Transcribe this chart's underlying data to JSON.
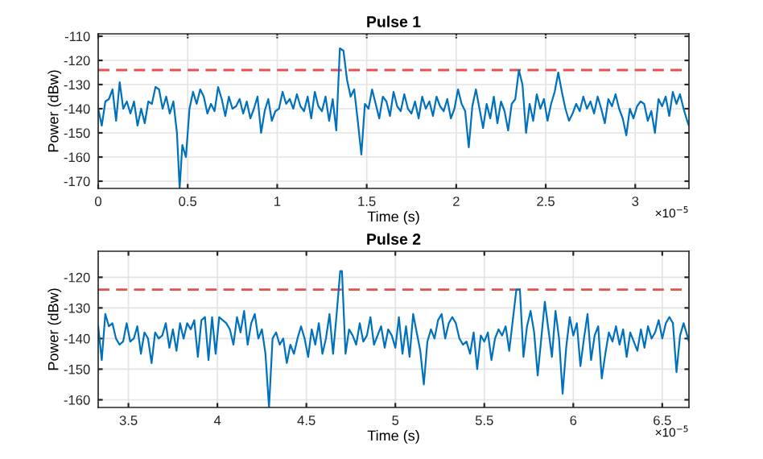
{
  "chart_data": [
    {
      "type": "line",
      "title": "Pulse 1",
      "xlabel": "Time (s)",
      "ylabel": "Power (dBw)",
      "annotations": [
        "×10$^{−5}$"
      ],
      "xlim": [
        0,
        3.3
      ],
      "xticks": [
        0,
        0.5,
        1,
        1.5,
        2,
        2.5,
        3
      ],
      "ylim": [
        -173,
        -109
      ],
      "yticks": [
        -170,
        -160,
        -150,
        -140,
        -130,
        -120,
        -110
      ],
      "grid": true,
      "line_style": "solid",
      "marker": "none",
      "ref_lines": [
        {
          "axis": "y",
          "value": -124,
          "label": null,
          "color": "#e8504f",
          "line_style": "dashed"
        }
      ],
      "series": [
        {
          "color": "#0072bd",
          "x": [
            0,
            0.02,
            0.04,
            0.06,
            0.08,
            0.1,
            0.12,
            0.14,
            0.16,
            0.18,
            0.2,
            0.22,
            0.24,
            0.26,
            0.28,
            0.3,
            0.32,
            0.34,
            0.36,
            0.38,
            0.4,
            0.42,
            0.44,
            0.455,
            0.47,
            0.49,
            0.51,
            0.53,
            0.55,
            0.57,
            0.59,
            0.61,
            0.63,
            0.65,
            0.67,
            0.69,
            0.71,
            0.73,
            0.75,
            0.77,
            0.79,
            0.81,
            0.83,
            0.85,
            0.87,
            0.89,
            0.91,
            0.93,
            0.95,
            0.97,
            0.99,
            1.01,
            1.03,
            1.05,
            1.07,
            1.09,
            1.11,
            1.13,
            1.15,
            1.17,
            1.19,
            1.21,
            1.23,
            1.25,
            1.27,
            1.29,
            1.31,
            1.33,
            1.35,
            1.37,
            1.39,
            1.41,
            1.43,
            1.45,
            1.47,
            1.49,
            1.51,
            1.53,
            1.55,
            1.57,
            1.59,
            1.61,
            1.63,
            1.65,
            1.67,
            1.69,
            1.71,
            1.73,
            1.75,
            1.77,
            1.79,
            1.81,
            1.83,
            1.85,
            1.87,
            1.89,
            1.91,
            1.93,
            1.95,
            1.97,
            1.99,
            2.01,
            2.03,
            2.05,
            2.07,
            2.09,
            2.11,
            2.13,
            2.15,
            2.17,
            2.19,
            2.21,
            2.23,
            2.25,
            2.27,
            2.29,
            2.31,
            2.33,
            2.35,
            2.37,
            2.39,
            2.41,
            2.43,
            2.45,
            2.47,
            2.49,
            2.51,
            2.53,
            2.55,
            2.57,
            2.59,
            2.61,
            2.63,
            2.65,
            2.67,
            2.69,
            2.71,
            2.73,
            2.75,
            2.77,
            2.79,
            2.81,
            2.83,
            2.85,
            2.87,
            2.89,
            2.91,
            2.93,
            2.95,
            2.97,
            2.99,
            3.01,
            3.03,
            3.05,
            3.07,
            3.09,
            3.11,
            3.13,
            3.15,
            3.17,
            3.19,
            3.21,
            3.23,
            3.25,
            3.27,
            3.29,
            3.3
          ],
          "values": [
            -140,
            -147,
            -137,
            -136,
            -132,
            -145,
            -129,
            -140,
            -137,
            -142,
            -137,
            -147,
            -140,
            -146,
            -137,
            -138,
            -131,
            -132,
            -140,
            -135,
            -142,
            -137,
            -150,
            -173,
            -155,
            -160,
            -140,
            -133,
            -138,
            -132,
            -135,
            -142,
            -138,
            -141,
            -131,
            -136,
            -143,
            -135,
            -140,
            -139,
            -136,
            -142,
            -137,
            -144,
            -140,
            -135,
            -150,
            -141,
            -136,
            -145,
            -141,
            -140,
            -133,
            -138,
            -136,
            -140,
            -134,
            -139,
            -141,
            -135,
            -144,
            -133,
            -139,
            -141,
            -135,
            -145,
            -136,
            -149,
            -115,
            -116,
            -128,
            -135,
            -132,
            -145,
            -159,
            -138,
            -140,
            -132,
            -138,
            -144,
            -135,
            -137,
            -143,
            -133,
            -139,
            -141,
            -134,
            -140,
            -142,
            -137,
            -144,
            -135,
            -140,
            -137,
            -143,
            -135,
            -139,
            -141,
            -136,
            -144,
            -140,
            -132,
            -138,
            -141,
            -156,
            -139,
            -132,
            -140,
            -148,
            -138,
            -144,
            -135,
            -146,
            -137,
            -141,
            -149,
            -138,
            -136,
            -124,
            -130,
            -150,
            -138,
            -145,
            -134,
            -140,
            -136,
            -145,
            -138,
            -133,
            -125,
            -133,
            -140,
            -145,
            -142,
            -138,
            -141,
            -135,
            -140,
            -137,
            -142,
            -135,
            -140,
            -146,
            -136,
            -139,
            -134,
            -140,
            -144,
            -151,
            -140,
            -144,
            -139,
            -137,
            -138,
            -145,
            -141,
            -150,
            -136,
            -139,
            -135,
            -143,
            -133,
            -138,
            -134,
            -140,
            -145,
            -147
          ]
        }
      ]
    },
    {
      "type": "line",
      "title": "Pulse 2",
      "xlabel": "Time (s)",
      "ylabel": "Power (dBw)",
      "annotations": [
        "×10$^{−5}$"
      ],
      "xlim": [
        3.33,
        6.65
      ],
      "xticks": [
        3.5,
        4,
        4.5,
        5,
        5.5,
        6,
        6.5
      ],
      "ylim": [
        -162.5,
        -111.5
      ],
      "yticks": [
        -160,
        -150,
        -140,
        -130,
        -120
      ],
      "grid": true,
      "line_style": "solid",
      "marker": "none",
      "ref_lines": [
        {
          "axis": "y",
          "value": -124,
          "label": null,
          "color": "#e8504f",
          "line_style": "dashed"
        }
      ],
      "series": [
        {
          "color": "#0072bd",
          "x": [
            3.33,
            3.35,
            3.37,
            3.39,
            3.41,
            3.43,
            3.45,
            3.47,
            3.49,
            3.51,
            3.53,
            3.55,
            3.57,
            3.59,
            3.61,
            3.63,
            3.65,
            3.67,
            3.69,
            3.71,
            3.73,
            3.75,
            3.77,
            3.79,
            3.81,
            3.83,
            3.85,
            3.87,
            3.89,
            3.91,
            3.93,
            3.95,
            3.97,
            3.99,
            4.01,
            4.03,
            4.05,
            4.07,
            4.09,
            4.11,
            4.13,
            4.15,
            4.17,
            4.19,
            4.21,
            4.23,
            4.25,
            4.27,
            4.29,
            4.31,
            4.33,
            4.35,
            4.37,
            4.39,
            4.41,
            4.43,
            4.45,
            4.47,
            4.49,
            4.51,
            4.53,
            4.55,
            4.57,
            4.59,
            4.61,
            4.63,
            4.65,
            4.67,
            4.69,
            4.7,
            4.72,
            4.74,
            4.76,
            4.78,
            4.8,
            4.82,
            4.84,
            4.86,
            4.88,
            4.9,
            4.92,
            4.94,
            4.96,
            4.98,
            5.0,
            5.02,
            5.04,
            5.06,
            5.08,
            5.1,
            5.12,
            5.14,
            5.16,
            5.18,
            5.2,
            5.22,
            5.24,
            5.26,
            5.28,
            5.3,
            5.32,
            5.34,
            5.36,
            5.38,
            5.4,
            5.42,
            5.44,
            5.46,
            5.48,
            5.5,
            5.52,
            5.54,
            5.56,
            5.58,
            5.6,
            5.62,
            5.64,
            5.66,
            5.68,
            5.7,
            5.72,
            5.74,
            5.76,
            5.78,
            5.8,
            5.82,
            5.84,
            5.86,
            5.88,
            5.9,
            5.92,
            5.94,
            5.96,
            5.98,
            6.0,
            6.02,
            6.04,
            6.06,
            6.08,
            6.1,
            6.12,
            6.14,
            6.16,
            6.18,
            6.2,
            6.22,
            6.24,
            6.26,
            6.28,
            6.3,
            6.32,
            6.34,
            6.36,
            6.38,
            6.4,
            6.42,
            6.44,
            6.46,
            6.48,
            6.5,
            6.52,
            6.54,
            6.56,
            6.58,
            6.6,
            6.62,
            6.65
          ],
          "values": [
            -136,
            -147,
            -132,
            -136,
            -135,
            -140,
            -142,
            -141,
            -135,
            -141,
            -140,
            -136,
            -145,
            -138,
            -140,
            -148,
            -138,
            -140,
            -139,
            -135,
            -143,
            -137,
            -144,
            -135,
            -140,
            -135,
            -137,
            -134,
            -146,
            -134,
            -133,
            -147,
            -133,
            -145,
            -133,
            -134,
            -135,
            -137,
            -142,
            -133,
            -138,
            -131,
            -142,
            -135,
            -132,
            -140,
            -137,
            -145,
            -162.5,
            -140,
            -138,
            -142,
            -140,
            -148,
            -142,
            -145,
            -140,
            -136,
            -140,
            -146,
            -137,
            -142,
            -135,
            -145,
            -140,
            -132,
            -145,
            -132,
            -118,
            -118,
            -145,
            -137,
            -139,
            -142,
            -135,
            -141,
            -139,
            -133,
            -142,
            -139,
            -136,
            -143,
            -137,
            -139,
            -143,
            -133,
            -145,
            -136,
            -146,
            -132,
            -138,
            -144,
            -155,
            -141,
            -137,
            -140,
            -134,
            -132,
            -140,
            -135,
            -133,
            -135,
            -140,
            -142,
            -141,
            -145,
            -138,
            -150,
            -139,
            -141,
            -138,
            -147,
            -140,
            -137,
            -139,
            -136,
            -144,
            -134,
            -124,
            -124,
            -146,
            -136,
            -131,
            -138,
            -152,
            -140,
            -128,
            -137,
            -146,
            -131,
            -140,
            -158,
            -143,
            -133,
            -139,
            -135,
            -149,
            -140,
            -132,
            -147,
            -139,
            -136,
            -153,
            -145,
            -138,
            -141,
            -136,
            -142,
            -137,
            -146,
            -138,
            -141,
            -144,
            -137,
            -143,
            -136,
            -140,
            -138,
            -134,
            -140,
            -135,
            -133,
            -135,
            -151,
            -139,
            -135,
            -141
          ]
        }
      ]
    }
  ]
}
